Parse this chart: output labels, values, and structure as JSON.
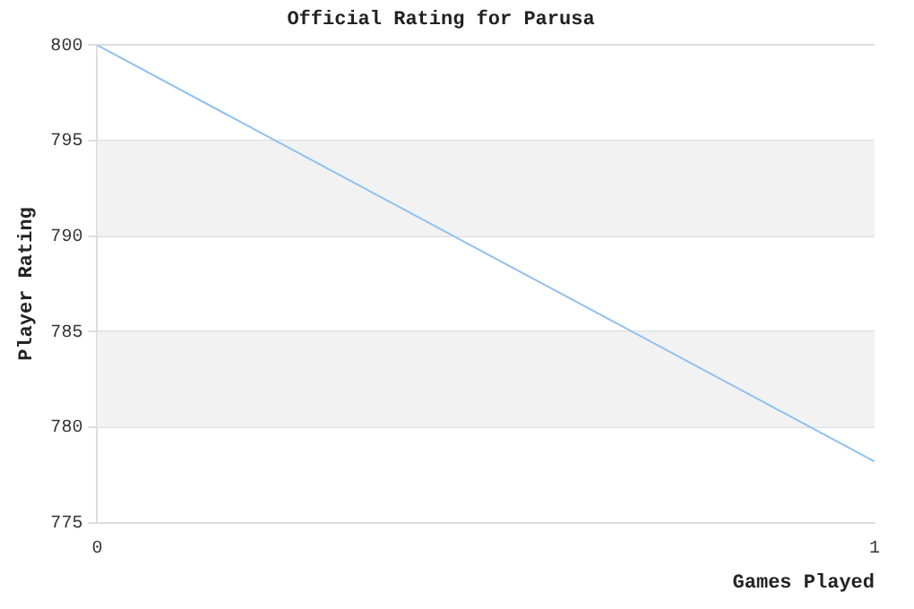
{
  "chart_data": {
    "type": "line",
    "title": "Official Rating for Parusa",
    "xlabel": "Games Played",
    "ylabel": "Player Rating",
    "x": [
      0,
      1
    ],
    "series": [
      {
        "color": "#8fc1f0",
        "values": [
          800,
          778.2
        ]
      }
    ],
    "xlim": [
      0,
      1
    ],
    "xticks": [
      0,
      1
    ],
    "ylim": [
      775,
      800
    ],
    "yticks": [
      775,
      780,
      785,
      790,
      795,
      800
    ],
    "bands": [
      {
        "axis": "y",
        "from": 790,
        "to": 795,
        "color": "#f2f2f2"
      },
      {
        "axis": "y",
        "from": 780,
        "to": 785,
        "color": "#f2f2f2"
      }
    ],
    "grid": "y",
    "legend": false,
    "marker": "none",
    "line_style": "solid"
  }
}
